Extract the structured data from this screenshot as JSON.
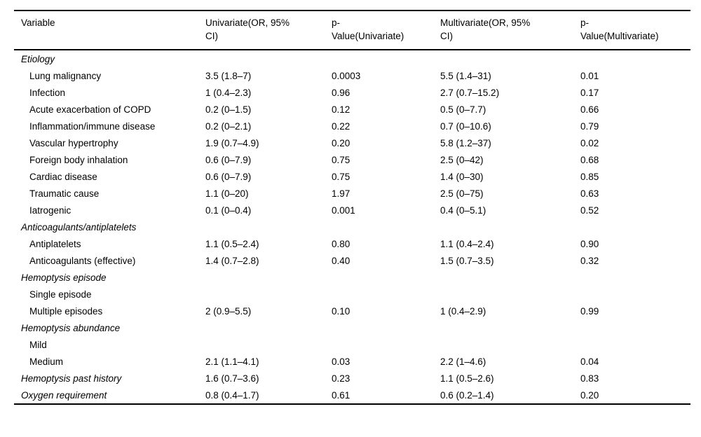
{
  "table": {
    "columns": [
      {
        "label": "Variable"
      },
      {
        "label": "Univariate(OR, 95%\nCI)"
      },
      {
        "label": "p-\nValue(Univariate)"
      },
      {
        "label": "Multivariate(OR, 95%\nCI)"
      },
      {
        "label": "p-\nValue(Multivariate)"
      }
    ],
    "rows": [
      {
        "type": "section",
        "variable": "Etiology",
        "univariate": "",
        "p_univariate": "",
        "multivariate": "",
        "p_multivariate": ""
      },
      {
        "type": "item",
        "variable": "Lung malignancy",
        "univariate": "3.5 (1.8–7)",
        "p_univariate": "0.0003",
        "multivariate": "5.5 (1.4–31)",
        "p_multivariate": "0.01"
      },
      {
        "type": "item",
        "variable": "Infection",
        "univariate": "1 (0.4–2.3)",
        "p_univariate": "0.96",
        "multivariate": "2.7 (0.7–15.2)",
        "p_multivariate": "0.17"
      },
      {
        "type": "item",
        "variable": "Acute exacerbation of COPD",
        "univariate": "0.2 (0–1.5)",
        "p_univariate": "0.12",
        "multivariate": "0.5 (0–7.7)",
        "p_multivariate": "0.66"
      },
      {
        "type": "item",
        "variable": "Inflammation/immune disease",
        "univariate": "0.2 (0–2.1)",
        "p_univariate": "0.22",
        "multivariate": "0.7 (0–10.6)",
        "p_multivariate": "0.79"
      },
      {
        "type": "item",
        "variable": "Vascular hypertrophy",
        "univariate": "1.9 (0.7–4.9)",
        "p_univariate": "0.20",
        "multivariate": "5.8 (1.2–37)",
        "p_multivariate": "0.02"
      },
      {
        "type": "item",
        "variable": "Foreign body inhalation",
        "univariate": "0.6 (0–7.9)",
        "p_univariate": "0.75",
        "multivariate": "2.5 (0–42)",
        "p_multivariate": "0.68"
      },
      {
        "type": "item",
        "variable": "Cardiac disease",
        "univariate": "0.6 (0–7.9)",
        "p_univariate": "0.75",
        "multivariate": "1.4 (0–30)",
        "p_multivariate": "0.85"
      },
      {
        "type": "item",
        "variable": "Traumatic cause",
        "univariate": "1.1 (0–20)",
        "p_univariate": "1.97",
        "multivariate": "2.5 (0–75)",
        "p_multivariate": "0.63"
      },
      {
        "type": "item",
        "variable": "Iatrogenic",
        "univariate": "0.1 (0–0.4)",
        "p_univariate": "0.001",
        "multivariate": "0.4 (0–5.1)",
        "p_multivariate": "0.52"
      },
      {
        "type": "section",
        "variable": "Anticoagulants/antiplatelets",
        "univariate": "",
        "p_univariate": "",
        "multivariate": "",
        "p_multivariate": ""
      },
      {
        "type": "item",
        "variable": "Antiplatelets",
        "univariate": "1.1 (0.5–2.4)",
        "p_univariate": "0.80",
        "multivariate": "1.1 (0.4–2.4)",
        "p_multivariate": "0.90"
      },
      {
        "type": "item",
        "variable": "Anticoagulants (effective)",
        "univariate": "1.4 (0.7–2.8)",
        "p_univariate": "0.40",
        "multivariate": "1.5 (0.7–3.5)",
        "p_multivariate": "0.32"
      },
      {
        "type": "section",
        "variable": "Hemoptysis episode",
        "univariate": "",
        "p_univariate": "",
        "multivariate": "",
        "p_multivariate": ""
      },
      {
        "type": "item",
        "variable": "Single episode",
        "univariate": "",
        "p_univariate": "",
        "multivariate": "",
        "p_multivariate": ""
      },
      {
        "type": "item",
        "variable": "Multiple episodes",
        "univariate": "2 (0.9–5.5)",
        "p_univariate": "0.10",
        "multivariate": "1 (0.4–2.9)",
        "p_multivariate": "0.99"
      },
      {
        "type": "section",
        "variable": "Hemoptysis abundance",
        "univariate": "",
        "p_univariate": "",
        "multivariate": "",
        "p_multivariate": ""
      },
      {
        "type": "item",
        "variable": "Mild",
        "univariate": "",
        "p_univariate": "",
        "multivariate": "",
        "p_multivariate": ""
      },
      {
        "type": "item",
        "variable": "Medium",
        "univariate": "2.1 (1.1–4.1)",
        "p_univariate": "0.03",
        "multivariate": "2.2 (1–4.6)",
        "p_multivariate": "0.04"
      },
      {
        "type": "section",
        "variable": "Hemoptysis past history",
        "univariate": "1.6 (0.7–3.6)",
        "p_univariate": "0.23",
        "multivariate": "1.1 (0.5–2.6)",
        "p_multivariate": "0.83"
      },
      {
        "type": "section",
        "variable": "Oxygen requirement",
        "univariate": "0.8 (0.4–1.7)",
        "p_univariate": "0.61",
        "multivariate": "0.6 (0.2–1.4)",
        "p_multivariate": "0.20"
      }
    ]
  }
}
